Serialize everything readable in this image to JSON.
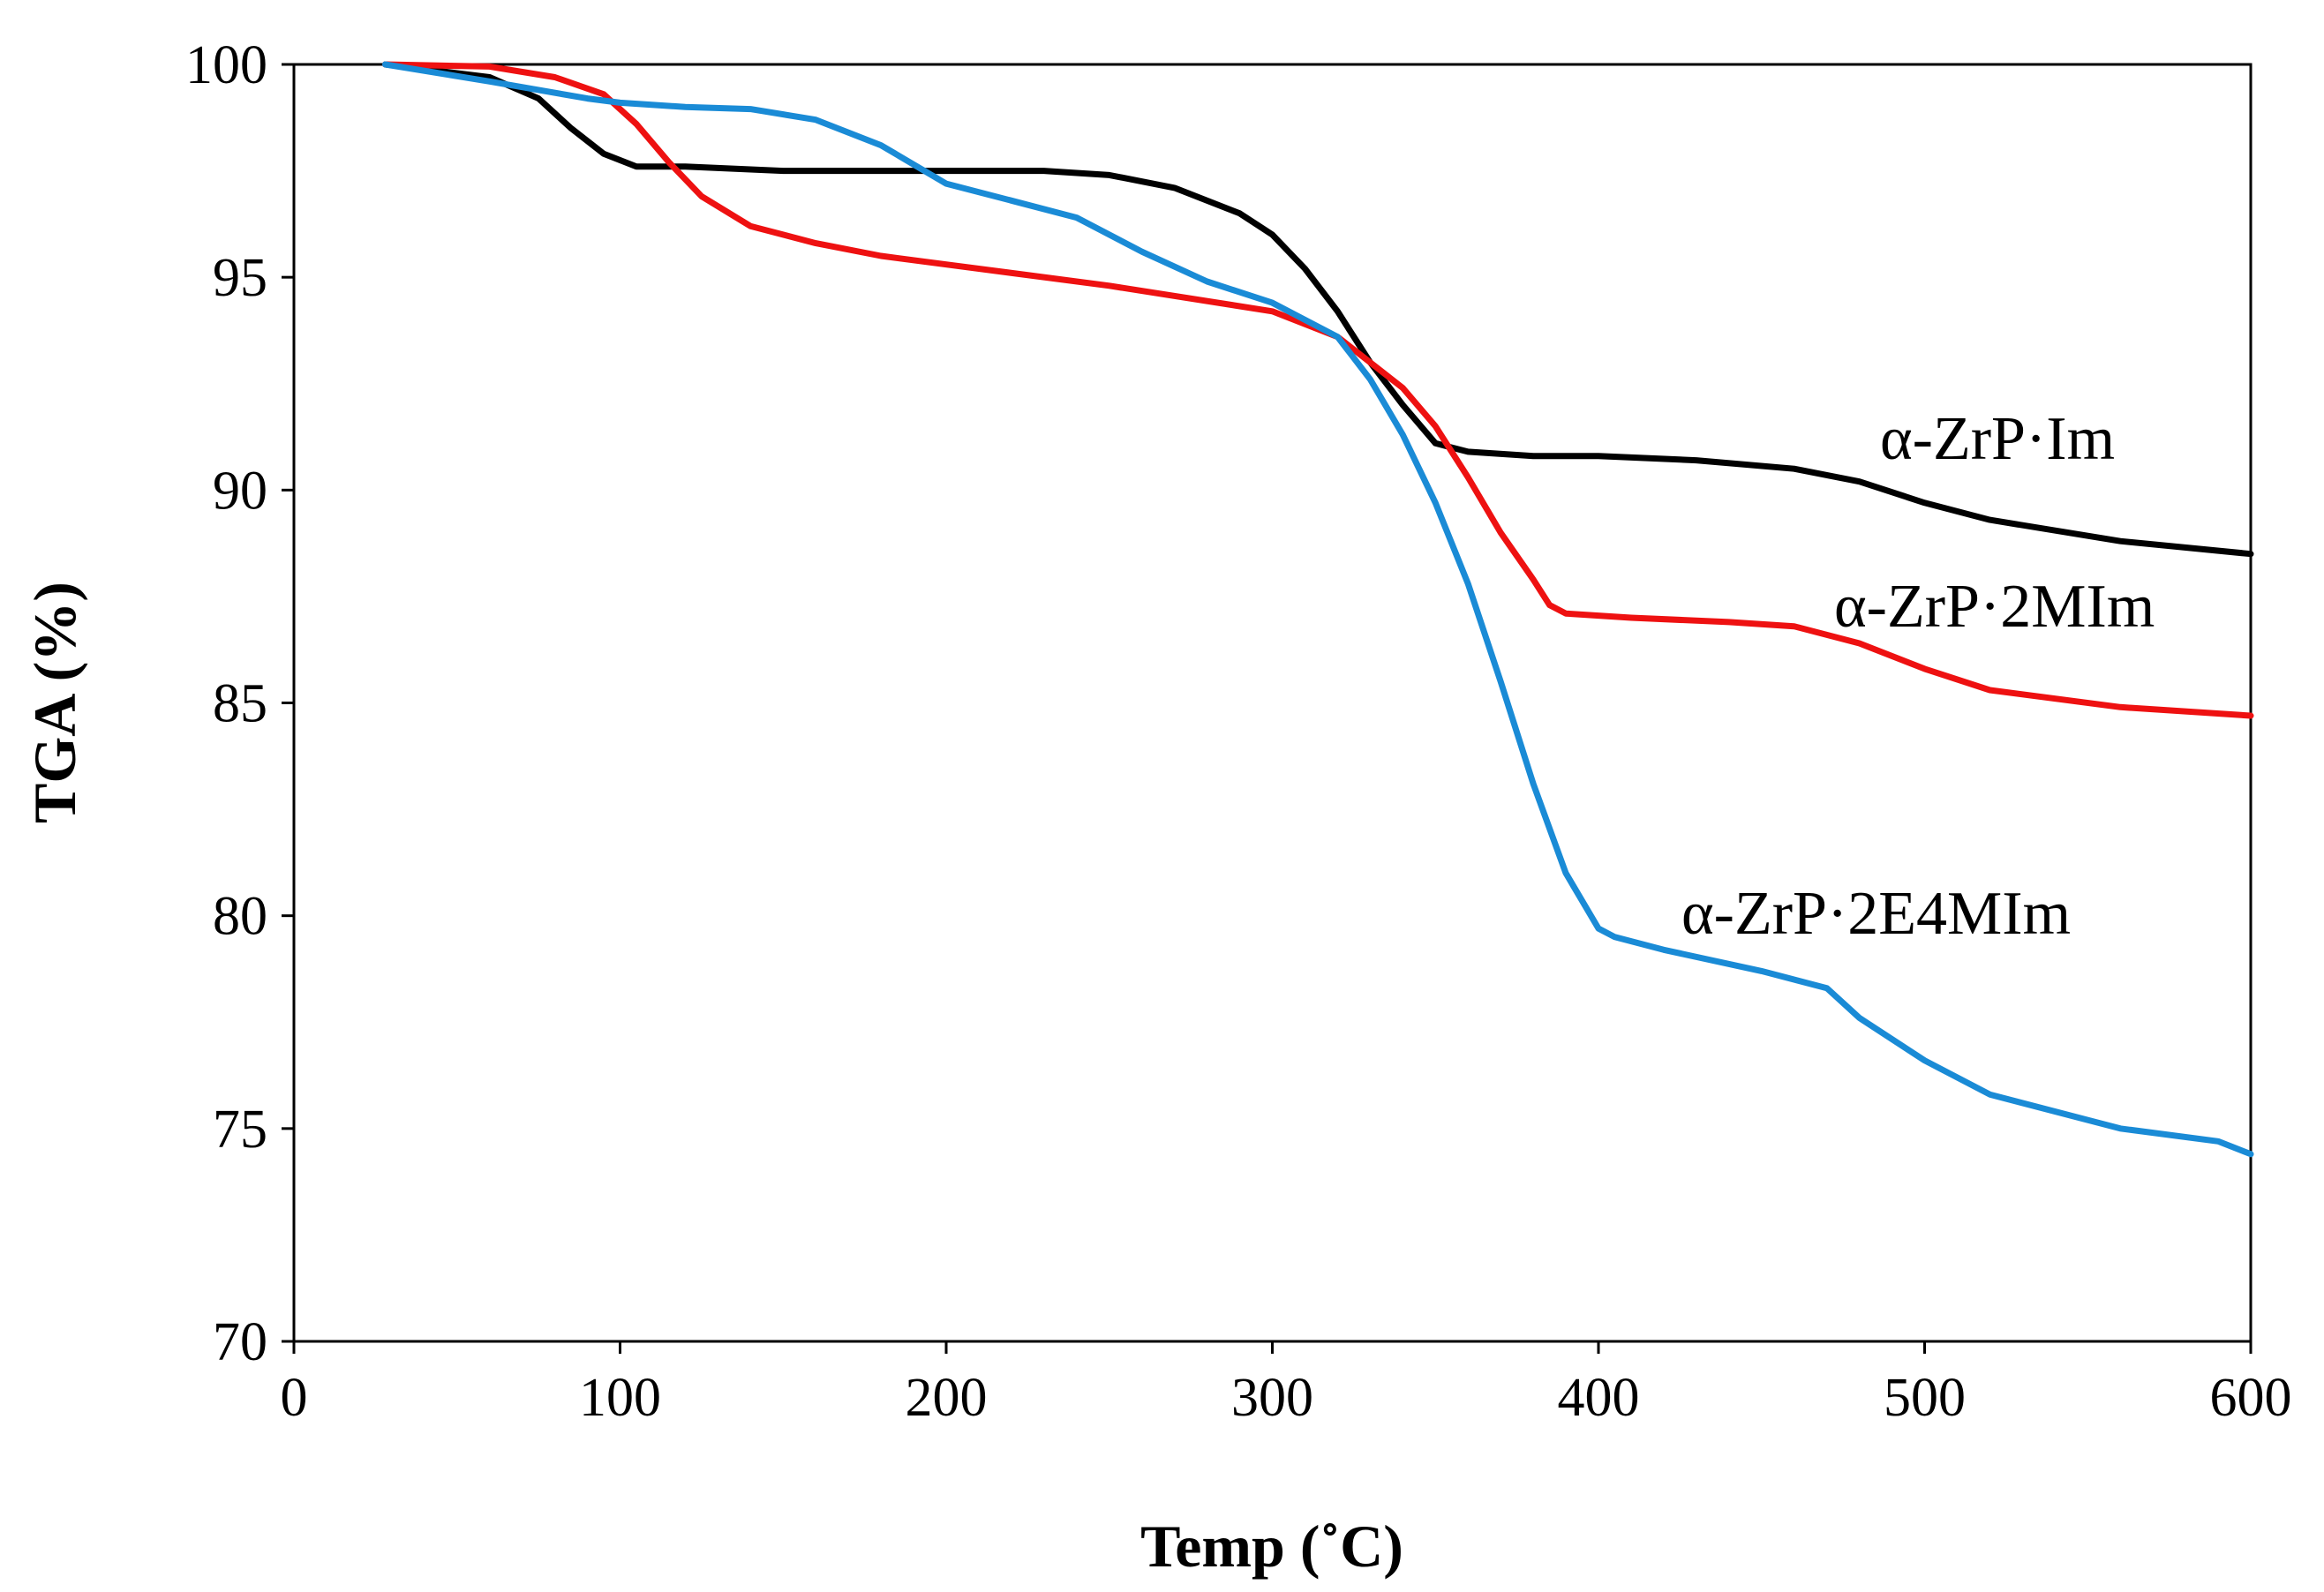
{
  "chart_data": {
    "type": "line",
    "title": "",
    "xlabel": "Temp (˚C)",
    "ylabel": "TGA (%)",
    "xlim": [
      0,
      600
    ],
    "ylim": [
      70,
      100
    ],
    "xticks": [
      "0",
      "100",
      "200",
      "300",
      "400",
      "500",
      "600"
    ],
    "yticks": [
      "70",
      "75",
      "80",
      "85",
      "90",
      "95",
      "100"
    ],
    "grid": false,
    "series": [
      {
        "name": "α-ZrP·Im",
        "color": "#000000",
        "x": [
          28,
          60,
          75,
          85,
          95,
          105,
          120,
          150,
          200,
          230,
          250,
          270,
          290,
          300,
          310,
          320,
          330,
          340,
          350,
          355,
          360,
          380,
          400,
          430,
          460,
          480,
          500,
          520,
          560,
          600
        ],
        "y": [
          100,
          99.7,
          99.2,
          98.5,
          97.9,
          97.6,
          97.6,
          97.5,
          97.5,
          97.5,
          97.4,
          97.1,
          96.5,
          96.0,
          95.2,
          94.2,
          93.0,
          92.0,
          91.1,
          91.0,
          90.9,
          90.8,
          90.8,
          90.7,
          90.5,
          90.2,
          89.7,
          89.3,
          88.8,
          88.5
        ]
      },
      {
        "name": "α-ZrP·2MIm",
        "color": "#ee1111",
        "x": [
          28,
          60,
          80,
          95,
          105,
          115,
          125,
          140,
          160,
          180,
          200,
          250,
          300,
          320,
          340,
          350,
          360,
          370,
          380,
          385,
          390,
          410,
          440,
          460,
          480,
          500,
          520,
          560,
          600
        ],
        "y": [
          100,
          99.95,
          99.7,
          99.3,
          98.6,
          97.7,
          96.9,
          96.2,
          95.8,
          95.5,
          95.3,
          94.8,
          94.2,
          93.6,
          92.4,
          91.5,
          90.3,
          89.0,
          87.9,
          87.3,
          87.1,
          87.0,
          86.9,
          86.8,
          86.4,
          85.8,
          85.3,
          84.9,
          84.7
        ]
      },
      {
        "name": "α-ZrP·2E4MIm",
        "color": "#1a8bd6",
        "x": [
          28,
          60,
          75,
          90,
          100,
          120,
          140,
          160,
          180,
          200,
          220,
          240,
          260,
          280,
          300,
          320,
          330,
          340,
          350,
          360,
          370,
          380,
          390,
          400,
          405,
          420,
          450,
          470,
          480,
          500,
          520,
          560,
          590,
          600
        ],
        "y": [
          100,
          99.6,
          99.4,
          99.2,
          99.1,
          99.0,
          98.95,
          98.7,
          98.1,
          97.2,
          96.8,
          96.4,
          95.6,
          94.9,
          94.4,
          93.6,
          92.6,
          91.3,
          89.7,
          87.8,
          85.5,
          83.1,
          81.0,
          79.7,
          79.5,
          79.2,
          78.7,
          78.3,
          77.6,
          76.6,
          75.8,
          75.0,
          74.7,
          74.4
        ]
      }
    ]
  }
}
